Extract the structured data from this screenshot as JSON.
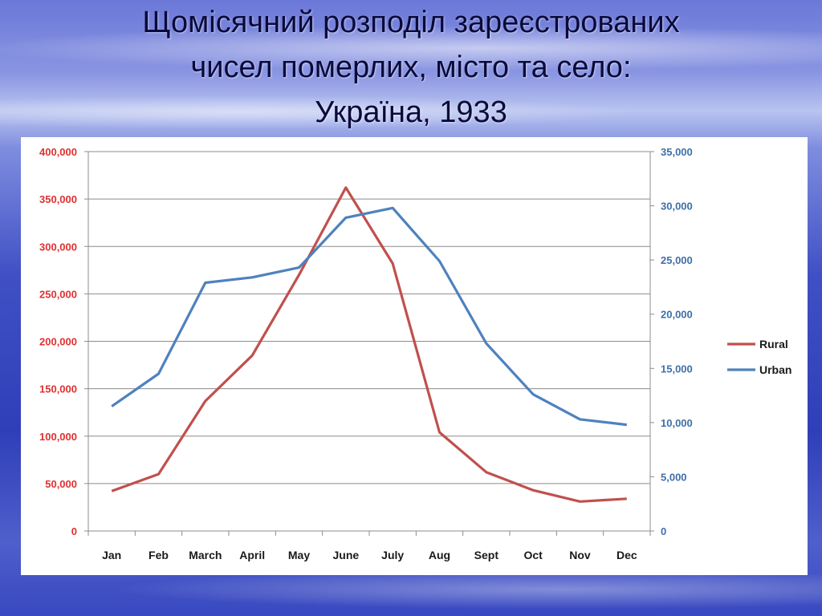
{
  "slide": {
    "title_lines": [
      "Щомісячний розподіл зареєстрованих",
      "чисел померлих,  місто та село:",
      "Україна, 1933"
    ]
  },
  "chart_data": {
    "type": "line",
    "categories": [
      "Jan",
      "Feb",
      "March",
      "April",
      "May",
      "June",
      "July",
      "Aug",
      "Sept",
      "Oct",
      "Nov",
      "Dec"
    ],
    "series": [
      {
        "name": "Rural",
        "axis": "left",
        "color": "#c0504d",
        "values": [
          42000,
          60000,
          137000,
          185000,
          270000,
          362000,
          282000,
          104000,
          62000,
          43000,
          31000,
          34000
        ]
      },
      {
        "name": "Urban",
        "axis": "right",
        "color": "#4f81bd",
        "values": [
          11500,
          14500,
          22900,
          23400,
          24300,
          28900,
          29800,
          24900,
          17300,
          12600,
          10300,
          9800
        ]
      }
    ],
    "y_left": {
      "ylim": [
        0,
        400000
      ],
      "ticks": [
        "0",
        "50,000",
        "100,000",
        "150,000",
        "200,000",
        "250,000",
        "300,000",
        "350,000",
        "400,000"
      ],
      "color": "#e03030"
    },
    "y_right": {
      "ylim": [
        0,
        35000
      ],
      "ticks": [
        "0",
        "5,000",
        "10,000",
        "15,000",
        "20,000",
        "25,000",
        "30,000",
        "35,000"
      ],
      "color": "#3f6fa8"
    },
    "grid": true,
    "legend": "right",
    "title": "",
    "xlabel": "",
    "ylabel": ""
  }
}
